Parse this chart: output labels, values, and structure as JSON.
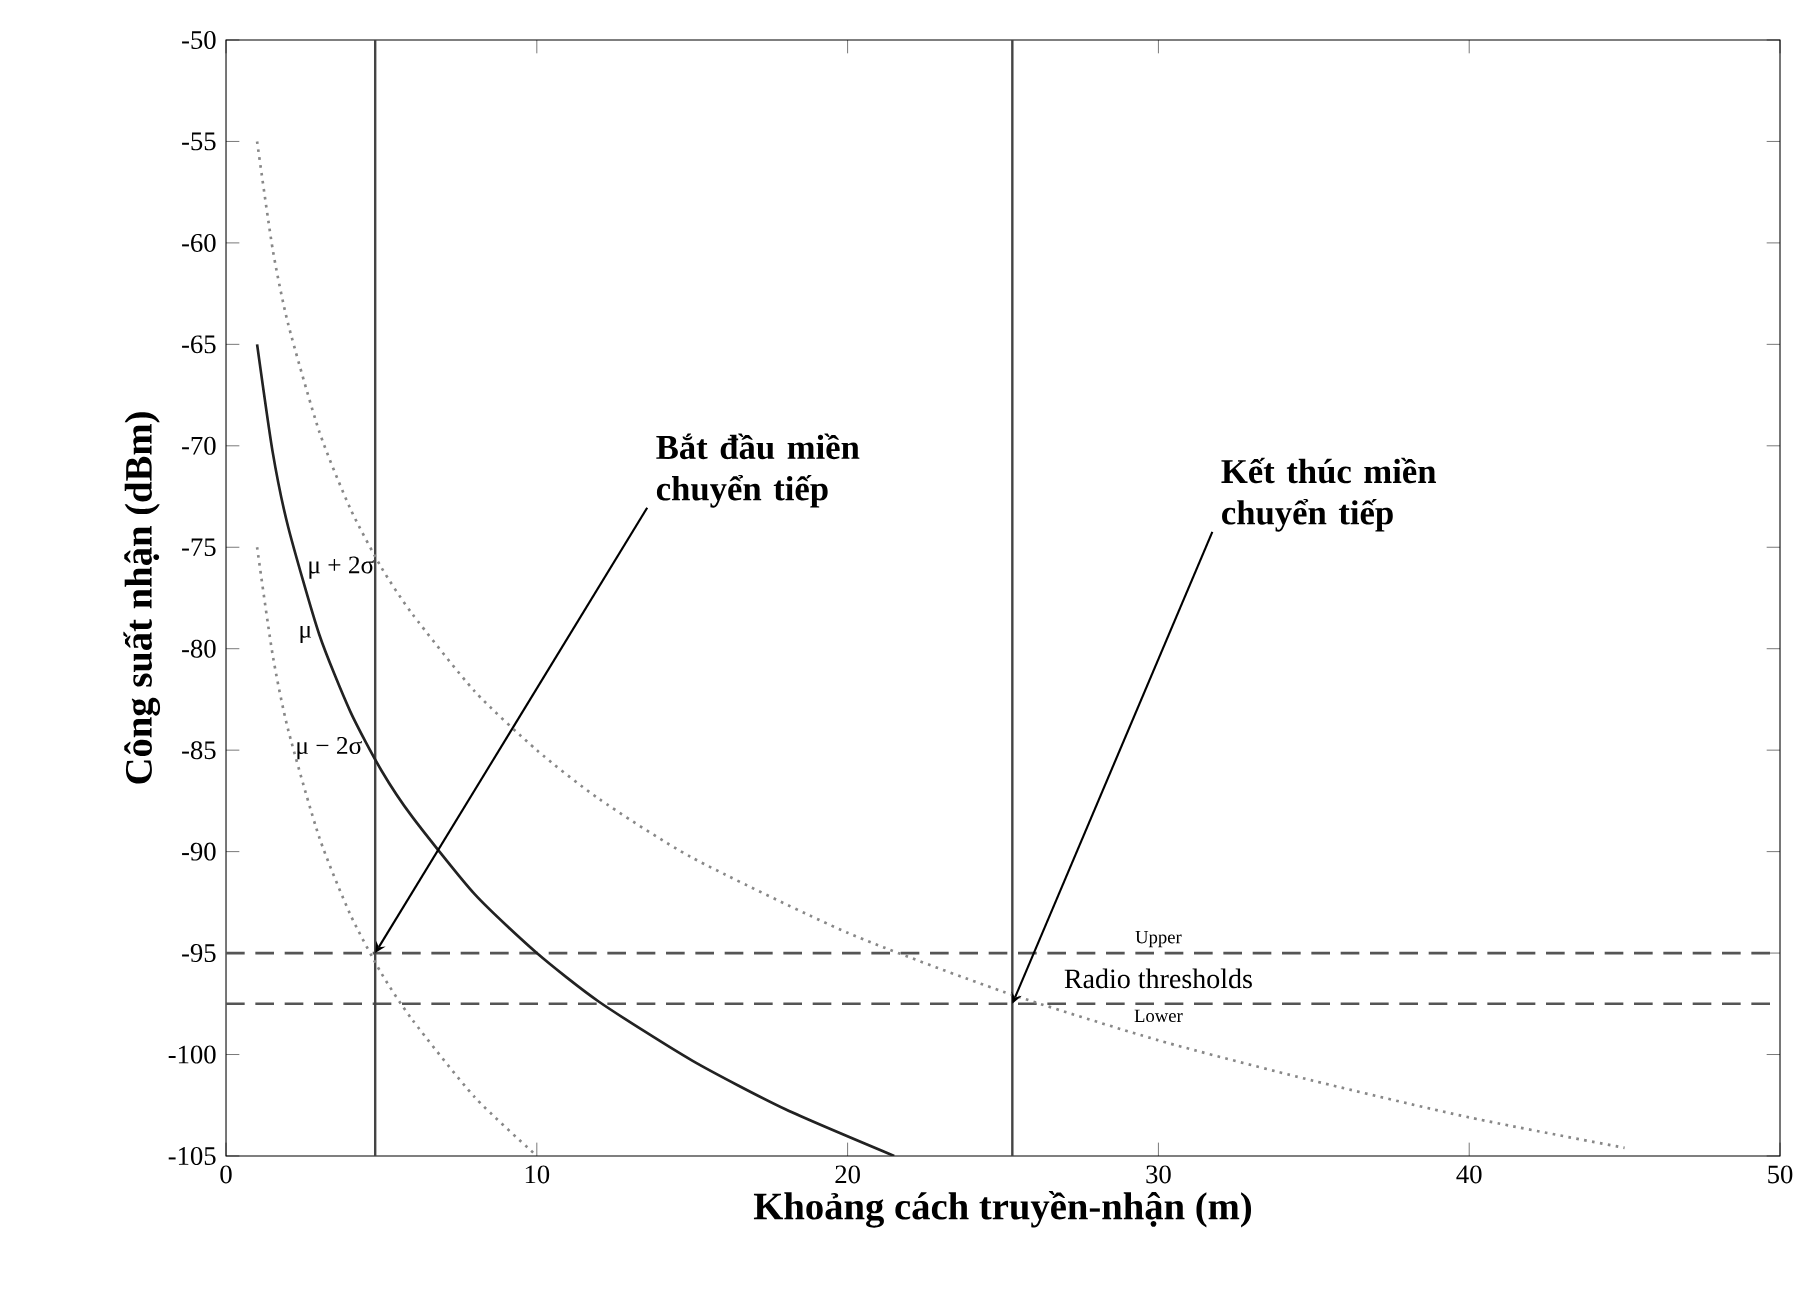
{
  "chart_data": {
    "type": "line",
    "xlabel": "Khoảng cách truyền-nhận (m)",
    "ylabel": "Công suất nhận (dBm)",
    "xlim": [
      0,
      50
    ],
    "ylim": [
      -105,
      -50
    ],
    "xticks": [
      0,
      10,
      20,
      30,
      40,
      50
    ],
    "yticks": [
      -105,
      -100,
      -95,
      -90,
      -85,
      -80,
      -75,
      -70,
      -65,
      -60,
      -55,
      -50
    ],
    "series": [
      {
        "name": "μ + 2σ",
        "color": "#888888",
        "line_style": "dotted",
        "x": [
          1,
          1.5,
          2,
          3,
          4,
          5,
          6,
          8,
          10,
          12,
          15,
          20,
          25,
          30,
          35,
          40,
          45
        ],
        "values": [
          -55,
          -60.3,
          -64,
          -69.3,
          -73.1,
          -76,
          -78.3,
          -82.1,
          -85,
          -87.4,
          -90.3,
          -94,
          -96.9,
          -99.3,
          -101.3,
          -103.1,
          -104.6
        ]
      },
      {
        "name": "μ",
        "color": "#222222",
        "line_style": "solid",
        "x": [
          1,
          1.5,
          2,
          3,
          4,
          5,
          6,
          8,
          10,
          12,
          15,
          18,
          21.5
        ],
        "values": [
          -65,
          -70.3,
          -74,
          -79.3,
          -83.1,
          -86,
          -88.3,
          -92.1,
          -95,
          -97.4,
          -100.3,
          -102.7,
          -105
        ]
      },
      {
        "name": "μ − 2σ",
        "color": "#888888",
        "line_style": "dotted",
        "x": [
          1,
          1.5,
          2,
          3,
          4,
          5,
          6,
          8,
          10
        ],
        "values": [
          -75,
          -80.3,
          -84,
          -89.3,
          -93.1,
          -96,
          -98.3,
          -102.1,
          -105
        ]
      }
    ],
    "ref_lines": [
      {
        "axis": "y",
        "value": -95,
        "label": "Upper",
        "color": "#555555",
        "line_style": "dashed"
      },
      {
        "axis": "y",
        "value": -97.5,
        "label": "Lower",
        "color": "#555555",
        "line_style": "dashed"
      },
      {
        "axis": "x",
        "value": 4.8,
        "color": "#444444",
        "line_style": "solid"
      },
      {
        "axis": "x",
        "value": 25.3,
        "color": "#444444",
        "line_style": "solid"
      }
    ],
    "annotations": [
      {
        "text": "Bắt đầu miền chuyển tiếp",
        "x": 4.8,
        "y": -95
      },
      {
        "text": "Kết thúc miền chuyển tiếp",
        "x": 25.3,
        "y": -97.5
      },
      "Radio thresholds"
    ]
  }
}
